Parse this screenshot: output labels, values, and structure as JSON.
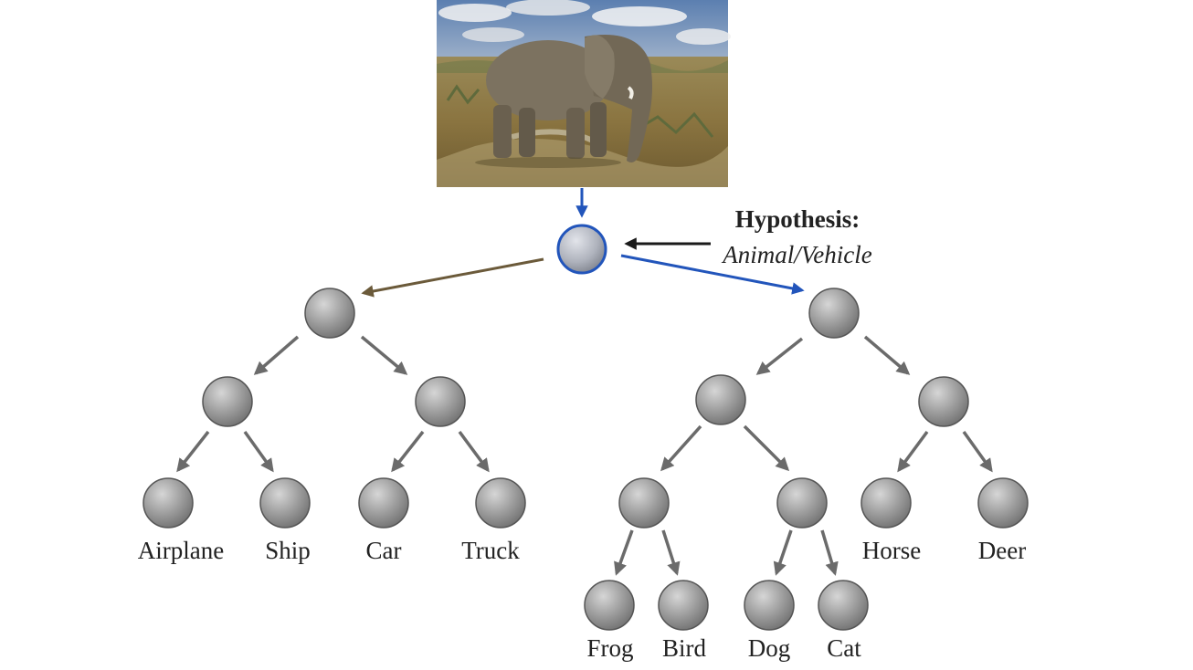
{
  "hypothesis": {
    "title": "Hypothesis:",
    "text": "Animal/Vehicle"
  },
  "input_image": {
    "subject": "elephant in savanna"
  },
  "leaves": {
    "airplane": "Airplane",
    "ship": "Ship",
    "car": "Car",
    "truck": "Truck",
    "frog": "Frog",
    "bird": "Bird",
    "dog": "Dog",
    "cat": "Cat",
    "horse": "Horse",
    "deer": "Deer"
  },
  "colors": {
    "active_path": "#2255bb",
    "left_branch": "#6b5a3a",
    "hypothesis_arrow": "#1a1a1a",
    "tree_edge": "#6b6b6b",
    "node_fill": "#9a9a9a",
    "node_stroke": "#555555",
    "root_stroke": "#2255bb"
  }
}
